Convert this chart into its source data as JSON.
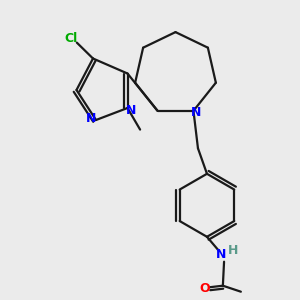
{
  "bg_color": "#ebebeb",
  "bond_color": "#1a1a1a",
  "N_color": "#0000ff",
  "O_color": "#ff0000",
  "Cl_color": "#00aa00",
  "lw": 1.6,
  "fig_size": [
    3.0,
    3.0
  ],
  "dpi": 100,
  "xlim": [
    0,
    10
  ],
  "ylim": [
    0,
    10
  ]
}
